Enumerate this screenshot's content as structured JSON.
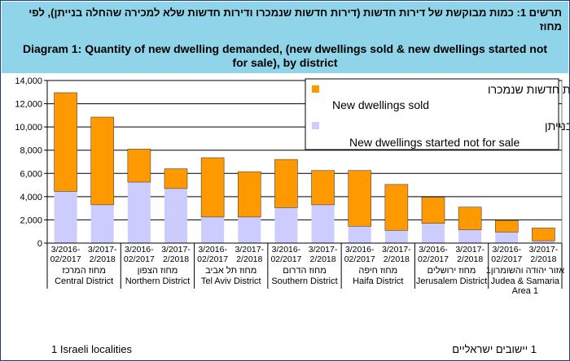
{
  "header": {
    "title_he_line1": "תרשים 1: כמות מבוקשת של דירות חדשות (דירות חדשות שנמכרו ודירות חדשות שלא למכירה שהחלה בנייתן), לפי",
    "title_he_line2": "מחוז",
    "title_en_line1": "Diagram 1:  Quantity of new dwelling demanded, (new dwellings sold & new dwellings started not",
    "title_en_line2": "for sale), by district"
  },
  "footer": {
    "note_en": "1 Israeli localities",
    "note_he": "1 יישובים ישראליים"
  },
  "colors": {
    "sold": "#ff9900",
    "not_for_sale": "#ccccff",
    "header_bg": "#8fd4e8",
    "plot_bg": "#ffffff"
  },
  "chart_data": {
    "type": "bar",
    "stacked": true,
    "ylim": [
      0,
      14000
    ],
    "yticks": [
      "0",
      "2,000",
      "4,000",
      "6,000",
      "8,000",
      "10,000",
      "12,000",
      "14,000"
    ],
    "categories": [
      [
        "3/2016-",
        "02/2017"
      ],
      [
        "3/2017-",
        "2/2018"
      ],
      [
        "3/2016-",
        "02/2017"
      ],
      [
        "3/2017-",
        "2/2018"
      ],
      [
        "3/2016-",
        "02/2017"
      ],
      [
        "3/2017-",
        "2/2018"
      ],
      [
        "3/2016-",
        "02/2017"
      ],
      [
        "3/2017-",
        "2/2018"
      ],
      [
        "3/2016-",
        "02/2017"
      ],
      [
        "3/2017-",
        "2/2018"
      ],
      [
        "3/2016-",
        "02/2017"
      ],
      [
        "3/2017-",
        "2/2018"
      ],
      [
        "3/2016-",
        "02/2017"
      ],
      [
        "3/2017-",
        "2/2018"
      ]
    ],
    "groups": [
      {
        "he": "מחוז המרכז",
        "en": "Central District"
      },
      {
        "he": "מחוז הצפון",
        "en": "Northern District"
      },
      {
        "he": "מחוז תל אביב",
        "en": "Tel Aviv District"
      },
      {
        "he": "מחוז הדרום",
        "en": "Southern District"
      },
      {
        "he": "מחוז חיפה",
        "en": "Haifa District"
      },
      {
        "he": "מחוז ירושלים",
        "en": "Jerusalem District"
      },
      {
        "he": "אזור יהודה והשומרון1",
        "en": "Judea & Samaria",
        "en2": "Area 1"
      }
    ],
    "series": [
      {
        "name_he": "דירות חדשות שלא למכירה שהחלה בנייתן",
        "name_en": "New dwellings started not for sale",
        "values": [
          4450,
          3300,
          5250,
          4700,
          2250,
          2250,
          3050,
          3300,
          1450,
          1100,
          1700,
          1150,
          950,
          200
        ]
      },
      {
        "name_he": "דירות חדשות שנמכרו",
        "name_en": "New dwellings sold",
        "values": [
          8500,
          7550,
          2850,
          1700,
          5100,
          3900,
          4150,
          2950,
          4800,
          3950,
          2250,
          1950,
          1000,
          1100
        ]
      }
    ],
    "legend_position": "top-right"
  }
}
